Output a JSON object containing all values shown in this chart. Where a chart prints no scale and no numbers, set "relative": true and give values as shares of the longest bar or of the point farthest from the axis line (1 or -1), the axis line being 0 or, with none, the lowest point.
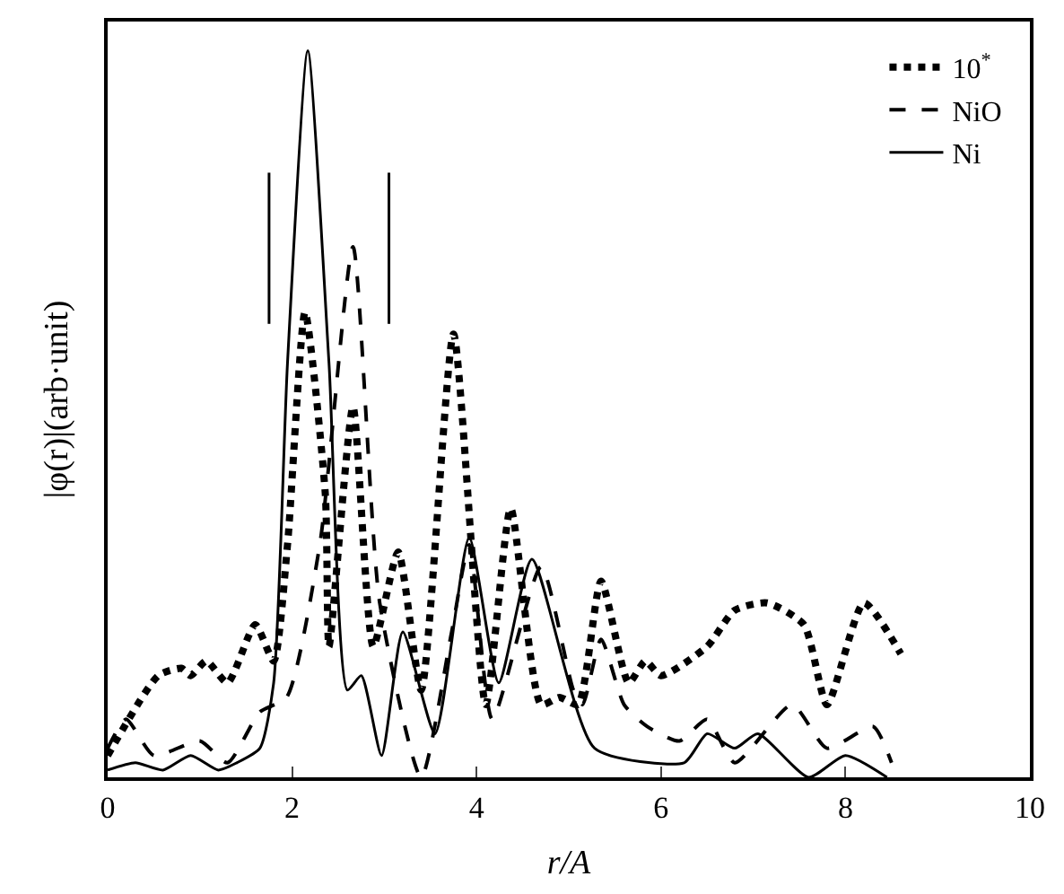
{
  "chart_data": {
    "type": "line",
    "relative": true,
    "xlabel": "r/A",
    "ylabel": "|φ(r)|(arb·unit)",
    "xlim": [
      0,
      10
    ],
    "xticks": [
      0,
      2,
      4,
      6,
      8,
      10
    ],
    "legend": "top right",
    "ref_lines": [
      {
        "axis": "x",
        "value": 1.75,
        "label": null
      },
      {
        "axis": "x",
        "value": 3.05,
        "label": null
      }
    ],
    "series": [
      {
        "name": "10$^{*}$",
        "color": "#000000",
        "line_style": "dotted",
        "x": [
          0,
          0.55,
          0.8,
          0.9,
          1.07,
          1.3,
          1.6,
          1.8,
          1.95,
          2.14,
          2.36,
          2.4,
          2.66,
          2.88,
          3.15,
          3.4,
          3.75,
          4.1,
          4.37,
          4.7,
          4.9,
          5.1,
          5.35,
          5.65,
          5.83,
          6.0,
          6.5,
          6.8,
          7.15,
          7.55,
          7.8,
          8.2,
          8.6
        ],
        "values": [
          0.03,
          0.14,
          0.15,
          0.14,
          0.16,
          0.13,
          0.21,
          0.16,
          0.32,
          0.64,
          0.39,
          0.18,
          0.51,
          0.18,
          0.31,
          0.12,
          0.61,
          0.1,
          0.37,
          0.1,
          0.11,
          0.1,
          0.27,
          0.13,
          0.16,
          0.14,
          0.18,
          0.23,
          0.24,
          0.21,
          0.1,
          0.24,
          0.17
        ]
      },
      {
        "name": "NiO",
        "color": "#000000",
        "line_style": "dashed",
        "x": [
          0,
          0.2,
          0.5,
          1.0,
          1.3,
          1.65,
          1.94,
          2.3,
          2.66,
          2.95,
          3.4,
          3.73,
          3.92,
          4.17,
          4.7,
          5.05,
          5.15,
          5.35,
          5.6,
          5.85,
          6.2,
          6.5,
          6.8,
          7.42,
          7.8,
          8.3,
          8.5
        ],
        "values": [
          0.04,
          0.08,
          0.03,
          0.05,
          0.02,
          0.09,
          0.11,
          0.32,
          0.73,
          0.24,
          0.0,
          0.2,
          0.32,
          0.08,
          0.29,
          0.12,
          0.1,
          0.19,
          0.1,
          0.07,
          0.05,
          0.08,
          0.02,
          0.1,
          0.04,
          0.07,
          0.02
        ]
      },
      {
        "name": "Ni",
        "color": "#000000",
        "line_style": "solid",
        "x": [
          0,
          0.3,
          0.6,
          0.9,
          1.2,
          1.4,
          1.65,
          1.8,
          1.95,
          2.17,
          2.4,
          2.6,
          2.75,
          2.97,
          3.2,
          3.55,
          3.92,
          4.24,
          4.6,
          5.28,
          6.25,
          6.5,
          6.8,
          7.05,
          7.6,
          8.0,
          8.45
        ],
        "values": [
          0.01,
          0.02,
          0.01,
          0.03,
          0.01,
          0.02,
          0.04,
          0.13,
          0.57,
          1.0,
          0.57,
          0.12,
          0.14,
          0.03,
          0.2,
          0.06,
          0.33,
          0.13,
          0.3,
          0.04,
          0.02,
          0.06,
          0.04,
          0.06,
          0.0,
          0.03,
          0.0
        ]
      }
    ]
  }
}
